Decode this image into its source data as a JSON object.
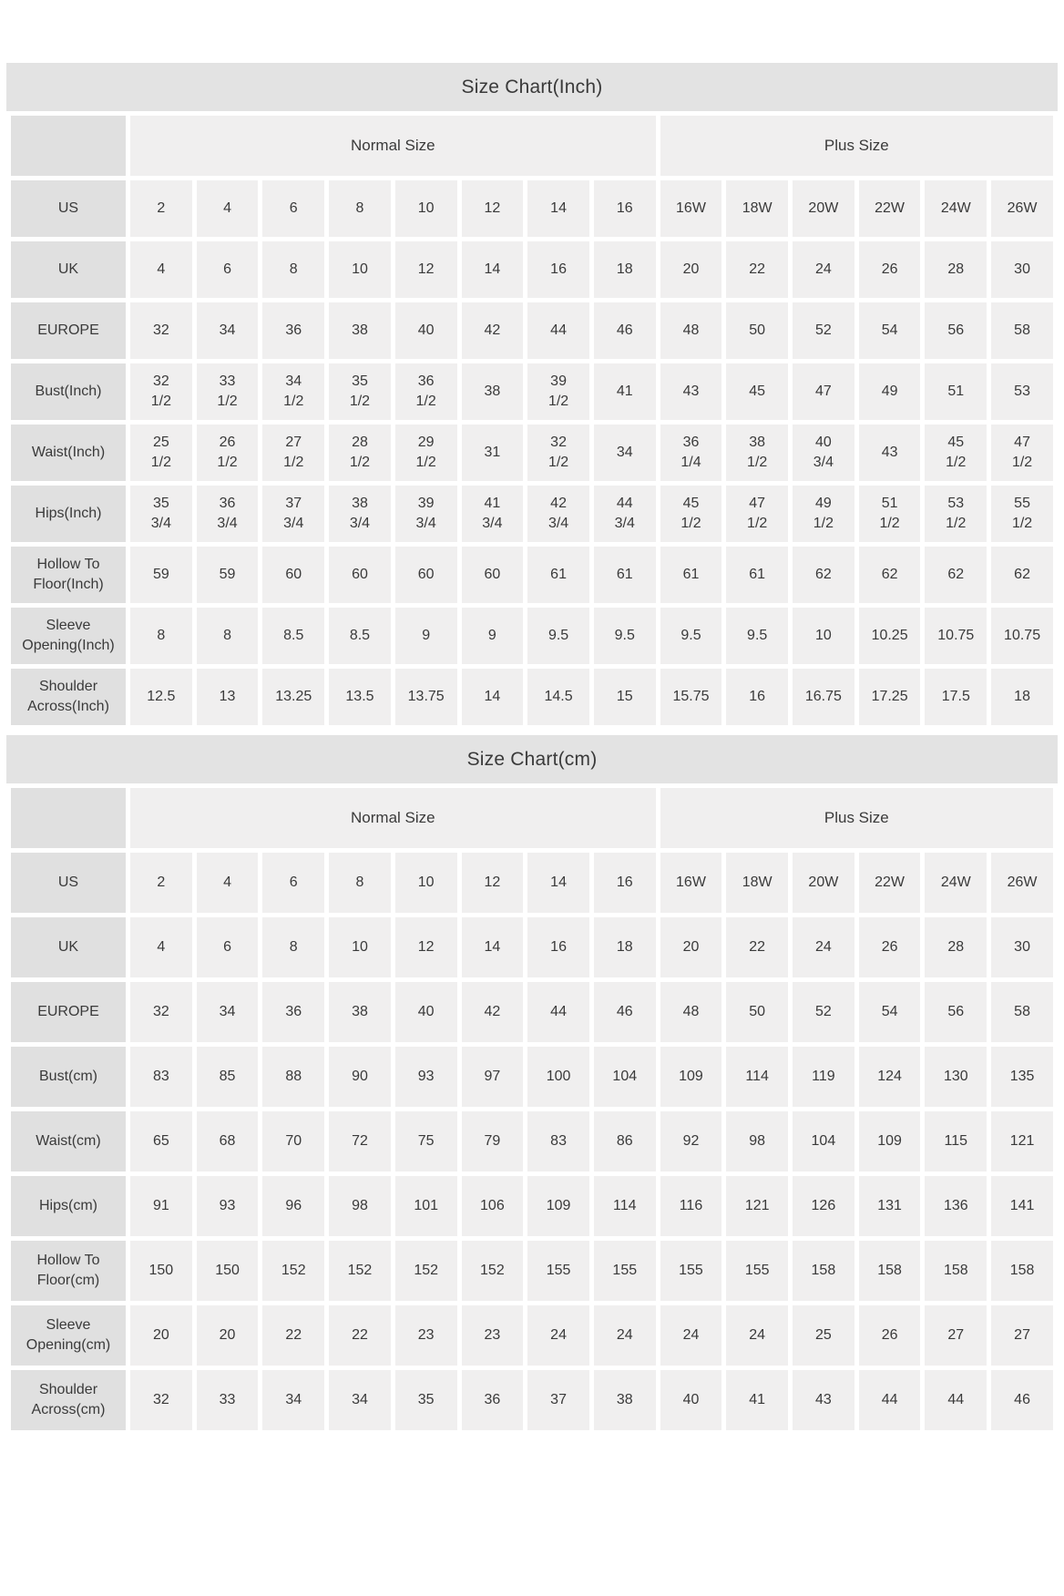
{
  "colors": {
    "page_bg": "#ffffff",
    "title_bar_bg": "#e3e3e3",
    "label_cell_bg": "#e0e0e0",
    "data_cell_bg": "#f0efef",
    "text": "#3a3a3a"
  },
  "chart_data": [
    {
      "type": "table",
      "title": "Size Chart(Inch)",
      "column_groups": [
        {
          "label": "",
          "span": 1
        },
        {
          "label": "Normal Size",
          "span": 8
        },
        {
          "label": "Plus Size",
          "span": 6
        }
      ],
      "rows": [
        {
          "label": "US",
          "values": [
            "2",
            "4",
            "6",
            "8",
            "10",
            "12",
            "14",
            "16",
            "16W",
            "18W",
            "20W",
            "22W",
            "24W",
            "26W"
          ]
        },
        {
          "label": "UK",
          "values": [
            "4",
            "6",
            "8",
            "10",
            "12",
            "14",
            "16",
            "18",
            "20",
            "22",
            "24",
            "26",
            "28",
            "30"
          ]
        },
        {
          "label": "EUROPE",
          "values": [
            "32",
            "34",
            "36",
            "38",
            "40",
            "42",
            "44",
            "46",
            "48",
            "50",
            "52",
            "54",
            "56",
            "58"
          ]
        },
        {
          "label": "Bust(Inch)",
          "values": [
            "32\n1/2",
            "33\n1/2",
            "34\n1/2",
            "35\n1/2",
            "36\n1/2",
            "38",
            "39\n1/2",
            "41",
            "43",
            "45",
            "47",
            "49",
            "51",
            "53"
          ]
        },
        {
          "label": "Waist(Inch)",
          "values": [
            "25\n1/2",
            "26\n1/2",
            "27\n1/2",
            "28\n1/2",
            "29\n1/2",
            "31",
            "32\n1/2",
            "34",
            "36\n1/4",
            "38\n1/2",
            "40\n3/4",
            "43",
            "45\n1/2",
            "47\n1/2"
          ]
        },
        {
          "label": "Hips(Inch)",
          "values": [
            "35\n3/4",
            "36\n3/4",
            "37\n3/4",
            "38\n3/4",
            "39\n3/4",
            "41\n3/4",
            "42\n3/4",
            "44\n3/4",
            "45\n1/2",
            "47\n1/2",
            "49\n1/2",
            "51\n1/2",
            "53\n1/2",
            "55\n1/2"
          ]
        },
        {
          "label": "Hollow To Floor(Inch)",
          "values": [
            "59",
            "59",
            "60",
            "60",
            "60",
            "60",
            "61",
            "61",
            "61",
            "61",
            "62",
            "62",
            "62",
            "62"
          ]
        },
        {
          "label": "Sleeve Opening(Inch)",
          "values": [
            "8",
            "8",
            "8.5",
            "8.5",
            "9",
            "9",
            "9.5",
            "9.5",
            "9.5",
            "9.5",
            "10",
            "10.25",
            "10.75",
            "10.75"
          ]
        },
        {
          "label": "Shoulder Across(Inch)",
          "values": [
            "12.5",
            "13",
            "13.25",
            "13.5",
            "13.75",
            "14",
            "14.5",
            "15",
            "15.75",
            "16",
            "16.75",
            "17.25",
            "17.5",
            "18"
          ]
        }
      ]
    },
    {
      "type": "table",
      "title": "Size Chart(cm)",
      "column_groups": [
        {
          "label": "",
          "span": 1
        },
        {
          "label": "Normal Size",
          "span": 8
        },
        {
          "label": "Plus Size",
          "span": 6
        }
      ],
      "rows": [
        {
          "label": "US",
          "values": [
            "2",
            "4",
            "6",
            "8",
            "10",
            "12",
            "14",
            "16",
            "16W",
            "18W",
            "20W",
            "22W",
            "24W",
            "26W"
          ]
        },
        {
          "label": "UK",
          "values": [
            "4",
            "6",
            "8",
            "10",
            "12",
            "14",
            "16",
            "18",
            "20",
            "22",
            "24",
            "26",
            "28",
            "30"
          ]
        },
        {
          "label": "EUROPE",
          "values": [
            "32",
            "34",
            "36",
            "38",
            "40",
            "42",
            "44",
            "46",
            "48",
            "50",
            "52",
            "54",
            "56",
            "58"
          ]
        },
        {
          "label": "Bust(cm)",
          "values": [
            "83",
            "85",
            "88",
            "90",
            "93",
            "97",
            "100",
            "104",
            "109",
            "114",
            "119",
            "124",
            "130",
            "135"
          ]
        },
        {
          "label": "Waist(cm)",
          "values": [
            "65",
            "68",
            "70",
            "72",
            "75",
            "79",
            "83",
            "86",
            "92",
            "98",
            "104",
            "109",
            "115",
            "121"
          ]
        },
        {
          "label": "Hips(cm)",
          "values": [
            "91",
            "93",
            "96",
            "98",
            "101",
            "106",
            "109",
            "114",
            "116",
            "121",
            "126",
            "131",
            "136",
            "141"
          ]
        },
        {
          "label": "Hollow To Floor(cm)",
          "values": [
            "150",
            "150",
            "152",
            "152",
            "152",
            "152",
            "155",
            "155",
            "155",
            "155",
            "158",
            "158",
            "158",
            "158"
          ]
        },
        {
          "label": "Sleeve Opening(cm)",
          "values": [
            "20",
            "20",
            "22",
            "22",
            "23",
            "23",
            "24",
            "24",
            "24",
            "24",
            "25",
            "26",
            "27",
            "27"
          ]
        },
        {
          "label": "Shoulder Across(cm)",
          "values": [
            "32",
            "33",
            "34",
            "34",
            "35",
            "36",
            "37",
            "38",
            "40",
            "41",
            "43",
            "44",
            "44",
            "46"
          ]
        }
      ]
    }
  ]
}
